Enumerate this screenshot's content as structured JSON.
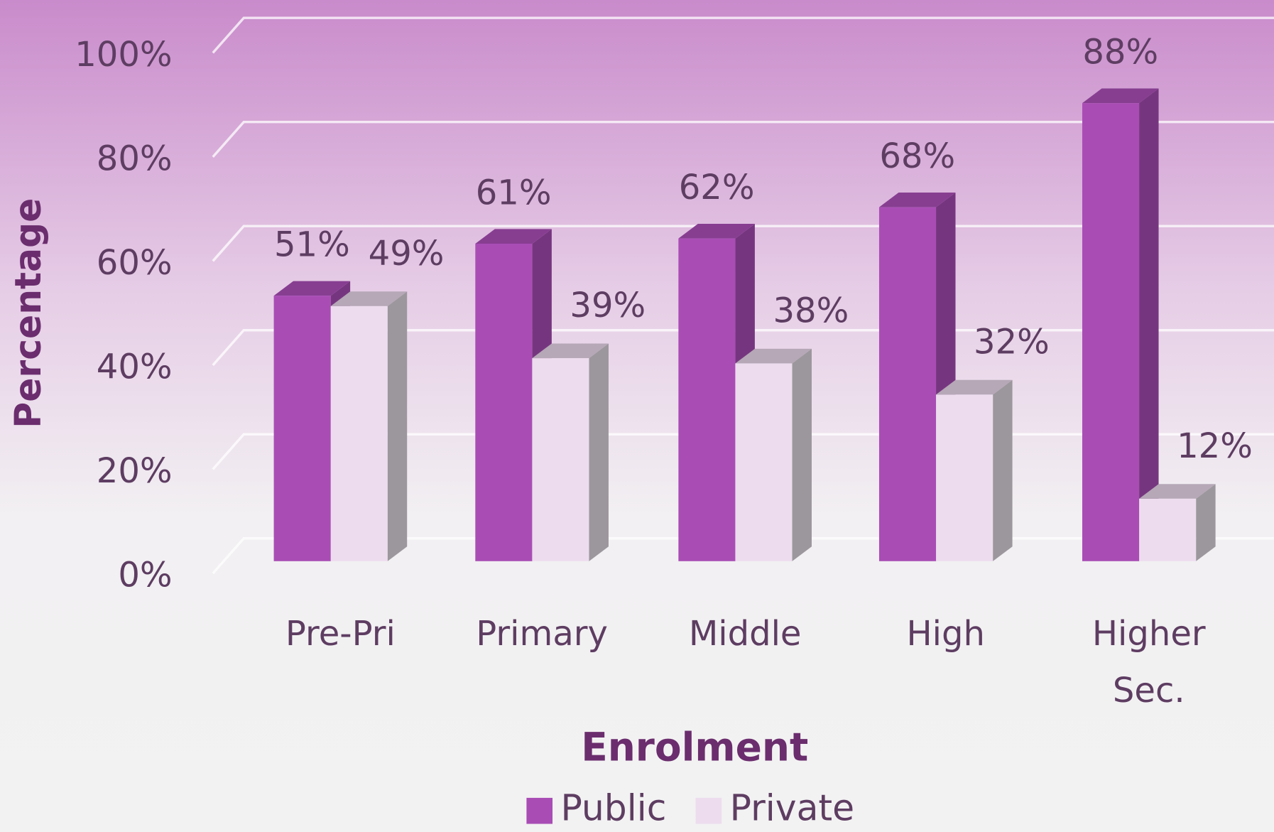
{
  "chart_data": {
    "type": "bar3d",
    "x_label": "Enrolment",
    "y_label": "Percentage",
    "categories": [
      "Pre-Pri",
      "Primary",
      "Middle",
      "High",
      "Higher Sec."
    ],
    "series": [
      {
        "name": "Public",
        "color": "#a94db5",
        "values": [
          51,
          61,
          62,
          68,
          88
        ],
        "value_labels": [
          "51%",
          "61%",
          "62%",
          "68%",
          "88%"
        ]
      },
      {
        "name": "Private",
        "color": "#eddcee",
        "values": [
          49,
          39,
          38,
          32,
          12
        ],
        "value_labels": [
          "49%",
          "39%",
          "38%",
          "32%",
          "12%"
        ]
      }
    ],
    "ylim": [
      0,
      100
    ],
    "yticks": [
      {
        "value": 0,
        "label": "0%"
      },
      {
        "value": 20,
        "label": "20%"
      },
      {
        "value": 40,
        "label": "40%"
      },
      {
        "value": 60,
        "label": "60%"
      },
      {
        "value": 80,
        "label": "80%"
      },
      {
        "value": 100,
        "label": "100%"
      }
    ],
    "grid": true,
    "legend": "bottom"
  }
}
